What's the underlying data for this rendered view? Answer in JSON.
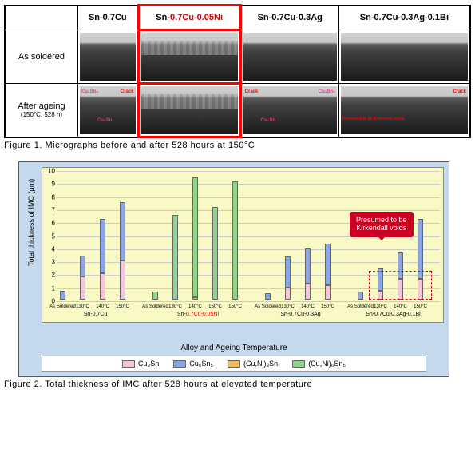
{
  "figure1": {
    "headers": [
      "",
      "Sn-0.7Cu",
      "Sn-0.7Cu-0.05Ni",
      "Sn-0.7Cu-0.3Ag",
      "Sn-0.7Cu-0.3Ag-0.1Bi"
    ],
    "header_highlight_index": 2,
    "rows": [
      {
        "label": "As soldered",
        "sublabel": ""
      },
      {
        "label": "After ageing",
        "sublabel": "(150°C, 528 h)"
      }
    ],
    "labels_row2": {
      "c1": [
        "Cu₃Sn₆",
        "Crack",
        "Cu₆Sn"
      ],
      "c3": [
        "Crack",
        "Cu₃Sn₆",
        "Cu₆Sn"
      ],
      "c4": [
        "Crack",
        "Presumed to be Kirkendall voids"
      ]
    },
    "caption": "Figure 1. Micrographs before and after 528 hours at 150°C"
  },
  "figure2": {
    "ylabel": "Total thickness of IMC (μm)",
    "ylim": [
      0,
      10
    ],
    "ytick_step": 1,
    "xaxis_title": "Alloy and Ageing Temperature",
    "grid_color": "#cccccc",
    "plot_bg": "#f9f9c5",
    "outer_bg": "#c5d9ec",
    "colors": {
      "Cu3Sn": "#f6c5d9",
      "Cu6Sn5": "#8aa6e6",
      "CuNi3Sn": "#f0b860",
      "CuNi6Sn5": "#8ed48e"
    },
    "legend": [
      {
        "key": "Cu3Sn",
        "label": "Cu₃Sn"
      },
      {
        "key": "Cu6Sn5",
        "label": "Cu₆Sn₅"
      },
      {
        "key": "CuNi3Sn",
        "label": "(Cu,Ni)₃Sn"
      },
      {
        "key": "CuNi6Sn5",
        "label": "(Cu,Ni)₆Sn₅"
      }
    ],
    "clusters": [
      {
        "name": "Sn-0.7Cu",
        "highlight_red": false,
        "bars": [
          {
            "x": "As Soldered",
            "stacks": [
              {
                "k": "Cu6Sn5",
                "v": 0.7
              }
            ]
          },
          {
            "x": "130°C",
            "stacks": [
              {
                "k": "Cu3Sn",
                "v": 1.8
              },
              {
                "k": "Cu6Sn5",
                "v": 1.6
              }
            ]
          },
          {
            "x": "140°C",
            "stacks": [
              {
                "k": "Cu3Sn",
                "v": 2.0
              },
              {
                "k": "Cu6Sn5",
                "v": 4.2
              }
            ]
          },
          {
            "x": "150°C",
            "stacks": [
              {
                "k": "Cu3Sn",
                "v": 3.0
              },
              {
                "k": "Cu6Sn5",
                "v": 4.5
              }
            ]
          }
        ]
      },
      {
        "name": "Sn-0.7Cu-0.05Ni",
        "highlight_red": true,
        "bars": [
          {
            "x": "As Soldered",
            "stacks": [
              {
                "k": "CuNi6Sn5",
                "v": 0.6
              }
            ]
          },
          {
            "x": "130°C",
            "stacks": [
              {
                "k": "CuNi6Sn5",
                "v": 6.5
              }
            ]
          },
          {
            "x": "140°C",
            "stacks": [
              {
                "k": "CuNi3Sn",
                "v": 0.2
              },
              {
                "k": "CuNi6Sn5",
                "v": 9.2
              }
            ]
          },
          {
            "x": "150°C",
            "stacks": [
              {
                "k": "CuNi6Sn5",
                "v": 7.1
              }
            ]
          },
          {
            "x": "150°C",
            "stacks": [
              {
                "k": "CuNi6Sn5",
                "v": 9.1
              }
            ]
          }
        ]
      },
      {
        "name": "Sn-0.7Cu-0.3Ag",
        "highlight_red": false,
        "bars": [
          {
            "x": "As Soldered",
            "stacks": [
              {
                "k": "Cu6Sn5",
                "v": 0.5
              }
            ]
          },
          {
            "x": "130°C",
            "stacks": [
              {
                "k": "Cu3Sn",
                "v": 0.9
              },
              {
                "k": "Cu6Sn5",
                "v": 2.4
              }
            ]
          },
          {
            "x": "140°C",
            "stacks": [
              {
                "k": "Cu3Sn",
                "v": 1.2
              },
              {
                "k": "Cu6Sn5",
                "v": 2.7
              }
            ]
          },
          {
            "x": "150°C",
            "stacks": [
              {
                "k": "Cu3Sn",
                "v": 1.1
              },
              {
                "k": "Cu6Sn5",
                "v": 3.2
              }
            ]
          }
        ]
      },
      {
        "name": "Sn-0.7Cu-0.3Ag-0.1Bi",
        "highlight_red": false,
        "dashed_box": true,
        "bars": [
          {
            "x": "As Soldered",
            "stacks": [
              {
                "k": "Cu6Sn5",
                "v": 0.6
              }
            ]
          },
          {
            "x": "130°C",
            "stacks": [
              {
                "k": "Cu3Sn",
                "v": 0.7
              },
              {
                "k": "Cu6Sn5",
                "v": 1.7
              }
            ]
          },
          {
            "x": "140°C",
            "stacks": [
              {
                "k": "Cu3Sn",
                "v": 1.6
              },
              {
                "k": "Cu6Sn5",
                "v": 2.0
              }
            ]
          },
          {
            "x": "150°C",
            "stacks": [
              {
                "k": "Cu3Sn",
                "v": 1.6
              },
              {
                "k": "Cu6Sn5",
                "v": 4.6
              }
            ]
          }
        ]
      }
    ],
    "callout": {
      "text1": "Presumed to be",
      "text2": "Kirkendall voids"
    },
    "caption": "Figure 2. Total thickness of IMC after 528 hours at elevated temperature"
  }
}
